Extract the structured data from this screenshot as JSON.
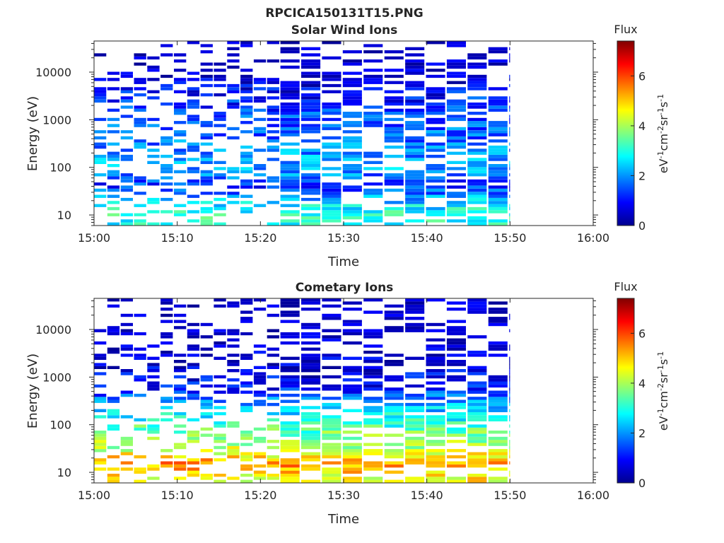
{
  "figure": {
    "title": "RPCICA150131T15.PNG"
  },
  "chart_data": [
    {
      "type": "heatmap",
      "title": "Solar Wind Ions",
      "xlabel": "Time",
      "ylabel": "Energy (eV)",
      "x_ticks": [
        "15:00",
        "15:10",
        "15:20",
        "15:30",
        "15:40",
        "15:50",
        "16:00"
      ],
      "xlim": [
        "15:00",
        "16:00"
      ],
      "y_scale": "log",
      "y_ticks": [
        10,
        100,
        1000,
        10000
      ],
      "y_tick_labels": [
        "10",
        "100",
        "1000",
        "10000"
      ],
      "ylim": [
        6,
        45000
      ],
      "data_end": "15:50",
      "colorbar": {
        "title": "Flux",
        "label": "eV-1cm-2sr-1s-1",
        "ticks": [
          "0",
          "2",
          "4",
          "6"
        ],
        "range": [
          0,
          7.4
        ],
        "colormap": "jet"
      },
      "profile": [
        {
          "energy_eV": 10,
          "flux": 3.0
        },
        {
          "energy_eV": 20,
          "flux": 2.4
        },
        {
          "energy_eV": 40,
          "flux": 1.2
        },
        {
          "energy_eV": 100,
          "flux": 2.2
        },
        {
          "energy_eV": 300,
          "flux": 1.8
        },
        {
          "energy_eV": 1000,
          "flux": 1.5
        },
        {
          "energy_eV": 3000,
          "flux": 1.1
        },
        {
          "energy_eV": 10000,
          "flux": 0.4
        },
        {
          "energy_eV": 40000,
          "flux": 0.2
        }
      ]
    },
    {
      "type": "heatmap",
      "title": "Cometary Ions",
      "xlabel": "Time",
      "ylabel": "Energy (eV)",
      "x_ticks": [
        "15:00",
        "15:10",
        "15:20",
        "15:30",
        "15:40",
        "15:50",
        "16:00"
      ],
      "xlim": [
        "15:00",
        "16:00"
      ],
      "y_scale": "log",
      "y_ticks": [
        10,
        100,
        1000,
        10000
      ],
      "y_tick_labels": [
        "10",
        "100",
        "1000",
        "10000"
      ],
      "ylim": [
        6,
        45000
      ],
      "data_end": "15:50",
      "colorbar": {
        "title": "Flux",
        "label": "eV-1cm-2sr-1s-1",
        "ticks": [
          "0",
          "2",
          "4",
          "6"
        ],
        "range": [
          0,
          7.4
        ],
        "colormap": "jet"
      },
      "profile": [
        {
          "energy_eV": 8,
          "flux": 4.6
        },
        {
          "energy_eV": 15,
          "flux": 5.4
        },
        {
          "energy_eV": 30,
          "flux": 4.2
        },
        {
          "energy_eV": 60,
          "flux": 3.6
        },
        {
          "energy_eV": 150,
          "flux": 2.8
        },
        {
          "energy_eV": 300,
          "flux": 2.0
        },
        {
          "energy_eV": 600,
          "flux": 1.0
        },
        {
          "energy_eV": 2000,
          "flux": 0.6
        },
        {
          "energy_eV": 10000,
          "flux": 0.3
        }
      ]
    }
  ]
}
